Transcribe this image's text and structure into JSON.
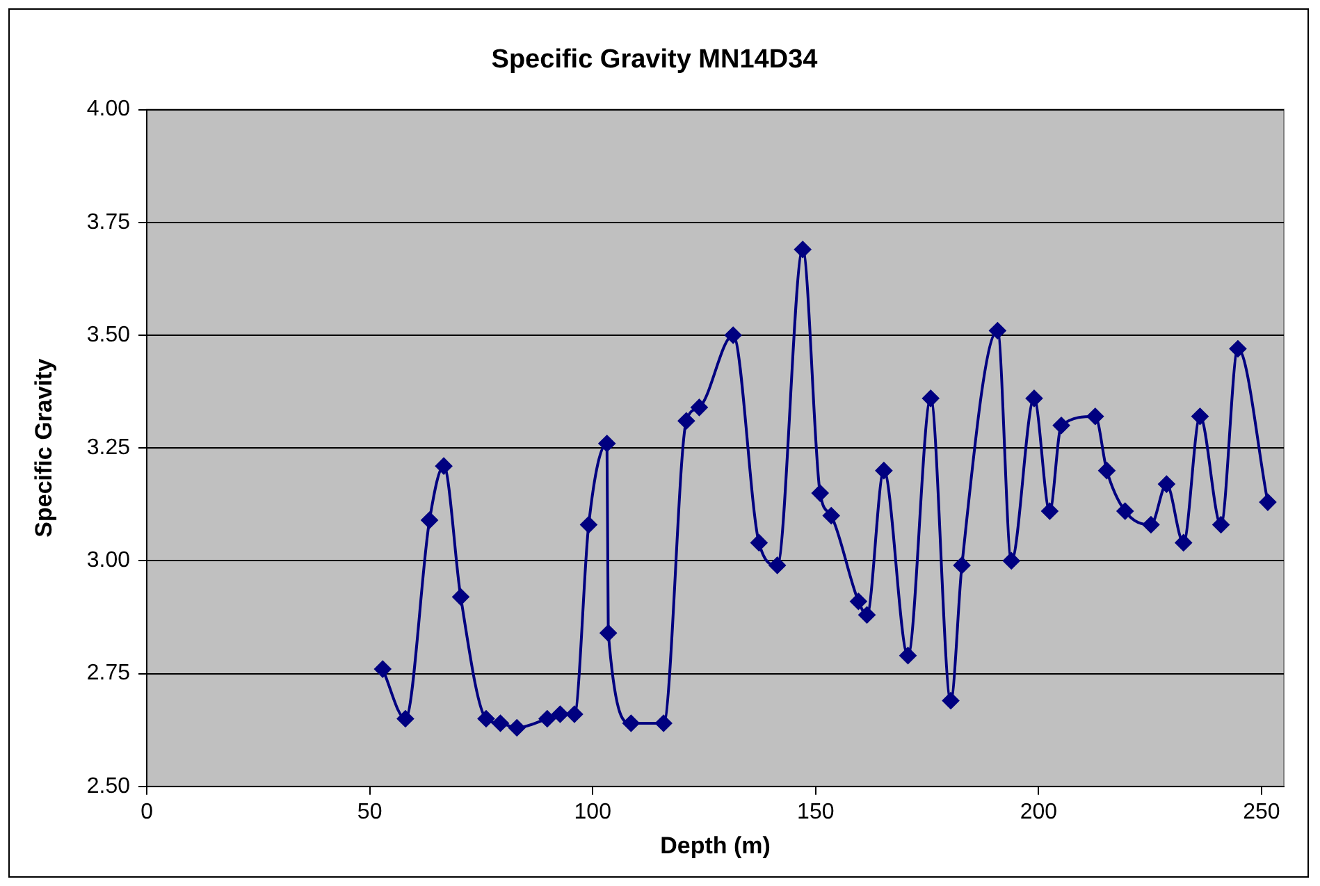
{
  "chart_data": {
    "type": "line",
    "title": "Specific Gravity MN14D34",
    "xlabel": "Depth (m)",
    "ylabel": "Specific Gravity",
    "x": [
      52.9,
      58,
      63.4,
      66.6,
      70.4,
      76.1,
      79.3,
      83,
      89.8,
      92.7,
      95.9,
      99.1,
      103.2,
      103.5,
      108.6,
      115.9,
      121,
      123.9,
      131.5,
      137.3,
      141.4,
      147.1,
      151,
      153.5,
      159.6,
      161.5,
      165.3,
      170.7,
      175.8,
      180.3,
      182.8,
      190.8,
      193.9,
      199,
      202.5,
      205.1,
      212.7,
      215.3,
      219.4,
      225.2,
      228.7,
      232.5,
      236.2,
      240.9,
      244.7,
      251.4
    ],
    "series": [
      {
        "color": "#000080",
        "values": [
          2.76,
          2.65,
          3.09,
          3.21,
          2.92,
          2.65,
          2.64,
          2.63,
          2.65,
          2.66,
          2.66,
          3.08,
          3.26,
          2.84,
          2.64,
          2.64,
          3.31,
          3.34,
          3.5,
          3.04,
          2.99,
          3.69,
          3.15,
          3.1,
          2.91,
          2.88,
          3.2,
          2.79,
          3.36,
          2.69,
          2.99,
          3.51,
          3.0,
          3.36,
          3.11,
          3.3,
          3.32,
          3.2,
          3.11,
          3.08,
          3.17,
          3.04,
          3.32,
          3.08,
          3.47,
          3.13
        ]
      }
    ],
    "xlim": [
      0,
      255
    ],
    "xticks": [
      0,
      50,
      100,
      150,
      200,
      250
    ],
    "ylim": [
      2.5,
      4
    ],
    "yticks": [
      {
        "value": 2.5,
        "label": "2.50"
      },
      {
        "value": 2.75,
        "label": "2.75"
      },
      {
        "value": 3,
        "label": "3.00"
      },
      {
        "value": 3.25,
        "label": "3.25"
      },
      {
        "value": 3.5,
        "label": "3.50"
      },
      {
        "value": 3.75,
        "label": "3.75"
      },
      {
        "value": 4,
        "label": "4.00"
      }
    ],
    "grid": "y",
    "legend": false,
    "marker": "diamond",
    "line_style": "solid"
  }
}
